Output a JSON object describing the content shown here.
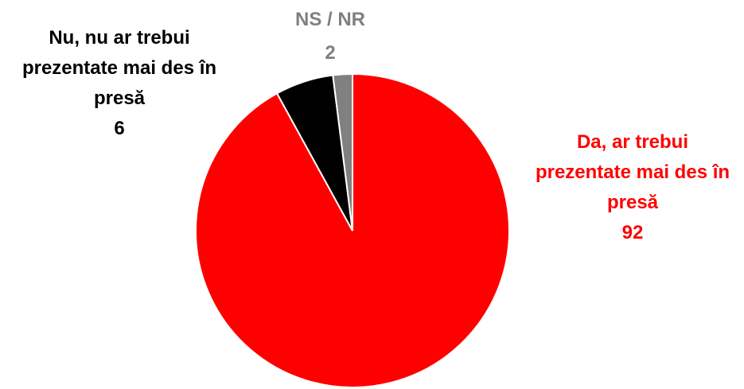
{
  "chart_data": {
    "type": "pie",
    "categories": [
      "Da, ar trebui prezentate mai des în presă",
      "Nu, nu ar trebui prezentate mai des în presă",
      "NS / NR"
    ],
    "values": [
      92,
      6,
      2
    ],
    "colors": [
      "#ff0000",
      "#000000",
      "#808080"
    ]
  }
}
